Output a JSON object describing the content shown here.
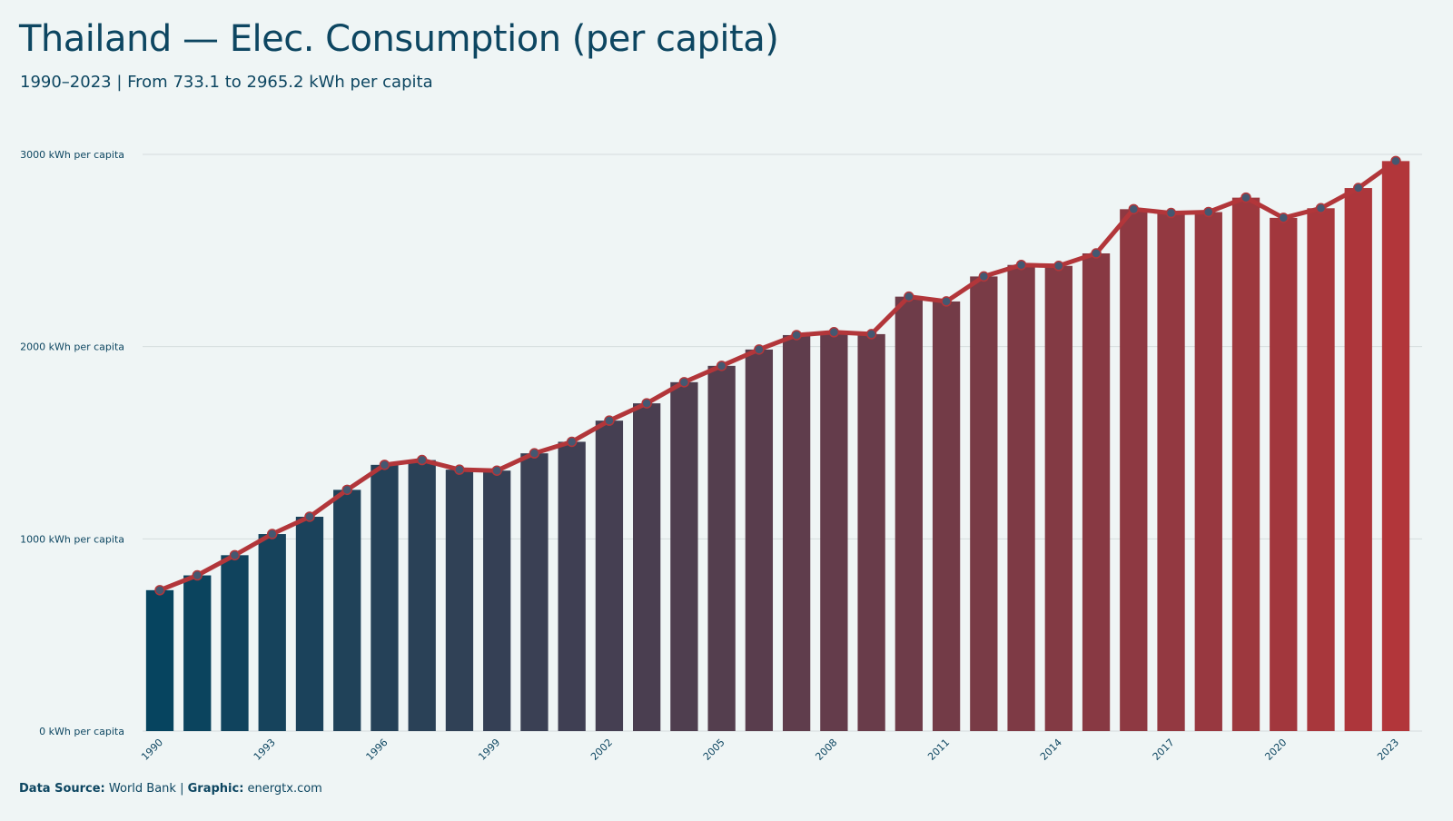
{
  "header": {
    "title": "Thailand — Elec. Consumption (per capita)",
    "subtitle": "1990–2023 | From 733.1 to 2965.2 kWh per capita"
  },
  "footer": {
    "source_label": "Data Source:",
    "source_value": "World Bank",
    "separator": "|",
    "graphic_label": "Graphic:",
    "graphic_value": "energtx.com"
  },
  "colors": {
    "start": "#06445f",
    "end": "#b2363a",
    "line": "#b2363a",
    "marker": "#445871",
    "grid": "#d4dcdd",
    "text": "#0d4661"
  },
  "chart_data": {
    "type": "bar",
    "overlay": "line",
    "unit": "kWh per capita",
    "categories": [
      1990,
      1991,
      1992,
      1993,
      1994,
      1995,
      1996,
      1997,
      1998,
      1999,
      2000,
      2001,
      2002,
      2003,
      2004,
      2005,
      2006,
      2007,
      2008,
      2009,
      2010,
      2011,
      2012,
      2013,
      2014,
      2015,
      2016,
      2017,
      2018,
      2019,
      2020,
      2021,
      2022,
      2023
    ],
    "values": [
      733.1,
      810,
      915,
      1025,
      1115,
      1255,
      1385,
      1410,
      1360,
      1355,
      1445,
      1505,
      1615,
      1705,
      1815,
      1900,
      1985,
      2060,
      2075,
      2065,
      2260,
      2235,
      2365,
      2425,
      2420,
      2485,
      2715,
      2695,
      2700,
      2775,
      2670,
      2720,
      2825,
      2965.2
    ],
    "x_tick_labels": [
      "1990",
      "1993",
      "1996",
      "1999",
      "2002",
      "2005",
      "2008",
      "2011",
      "2014",
      "2017",
      "2020",
      "2023"
    ],
    "y_ticks": [
      0,
      1000,
      2000,
      3000
    ],
    "y_tick_labels": [
      "0 kWh per capita",
      "1000 kWh per capita",
      "2000 kWh per capita",
      "3000 kWh per capita"
    ],
    "ylim": [
      0,
      3000
    ],
    "grid": true
  }
}
